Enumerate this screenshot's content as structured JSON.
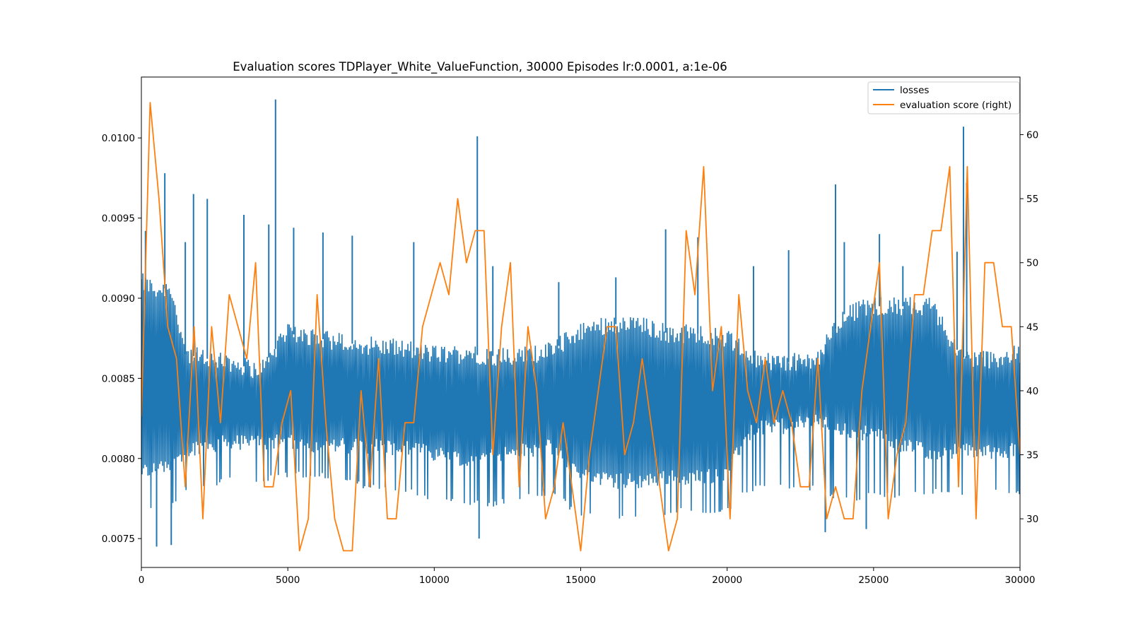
{
  "colors": {
    "losses": "#1f77b4",
    "score": "#ff7f0e",
    "axes": "#000000",
    "background": "#ffffff"
  },
  "chart_data": {
    "type": "line",
    "title": "Evaluation scores TDPlayer_White_ValueFunction, 30000 Episodes  lr:0.0001, a:1e-06",
    "xlabel": "",
    "ylabel": "",
    "xlim": [
      0,
      30000
    ],
    "ylim_left": [
      0.00732,
      0.01038
    ],
    "ylim_right": [
      26.2,
      64.5
    ],
    "x_ticks": [
      0,
      5000,
      10000,
      15000,
      20000,
      25000,
      30000
    ],
    "x_tick_labels": [
      "0",
      "5000",
      "10000",
      "15000",
      "20000",
      "25000",
      "30000"
    ],
    "y_left_ticks": [
      0.0075,
      0.008,
      0.0085,
      0.009,
      0.0095,
      0.01
    ],
    "y_left_tick_labels": [
      "0.0075",
      "0.0080",
      "0.0085",
      "0.0090",
      "0.0095",
      "0.0100"
    ],
    "y_right_ticks": [
      30,
      35,
      40,
      45,
      50,
      55,
      60
    ],
    "y_right_tick_labels": [
      "30",
      "35",
      "40",
      "45",
      "50",
      "55",
      "60"
    ],
    "legend": {
      "position": "top-right",
      "entries": [
        "losses",
        "evaluation score (right)"
      ]
    },
    "series": [
      {
        "name": "losses",
        "axis": "left",
        "style": "dense-oscillating band",
        "step": 50,
        "envelope": {
          "x": [
            0,
            500,
            1000,
            1500,
            2000,
            3000,
            4000,
            5000,
            6000,
            7000,
            8000,
            9000,
            10000,
            11000,
            12000,
            13000,
            14000,
            15000,
            16000,
            17000,
            18000,
            19000,
            20000,
            20500,
            21000,
            22000,
            23000,
            24000,
            25000,
            26000,
            27000,
            28000,
            29000,
            30000
          ],
          "upper": [
            0.0091,
            0.00905,
            0.00907,
            0.00865,
            0.00863,
            0.0086,
            0.00855,
            0.00878,
            0.00875,
            0.00872,
            0.0087,
            0.00868,
            0.00865,
            0.00865,
            0.00864,
            0.00864,
            0.00867,
            0.0088,
            0.00884,
            0.00883,
            0.00878,
            0.00878,
            0.00875,
            0.00868,
            0.00862,
            0.0086,
            0.0086,
            0.0089,
            0.00895,
            0.00895,
            0.00895,
            0.00863,
            0.00862,
            0.00865
          ],
          "lower": [
            0.00792,
            0.00793,
            0.00798,
            0.00805,
            0.00808,
            0.0081,
            0.0081,
            0.0081,
            0.00808,
            0.00808,
            0.00808,
            0.00806,
            0.00803,
            0.008,
            0.00802,
            0.00805,
            0.00807,
            0.0079,
            0.00786,
            0.00786,
            0.00788,
            0.00789,
            0.0079,
            0.0081,
            0.0082,
            0.0082,
            0.00823,
            0.00818,
            0.00815,
            0.00808,
            0.00804,
            0.00805,
            0.00804,
            0.00805
          ],
          "floor": [
            0.00766,
            0.00768,
            0.00768,
            0.00778,
            0.0078,
            0.00785,
            0.00785,
            0.00788,
            0.00788,
            0.00783,
            0.0078,
            0.00778,
            0.00772,
            0.0077,
            0.0077,
            0.00775,
            0.00777,
            0.00762,
            0.00762,
            0.00762,
            0.00765,
            0.00766,
            0.00766,
            0.00776,
            0.0078,
            0.0078,
            0.0078,
            0.00772,
            0.00775,
            0.00775,
            0.00777,
            0.00777,
            0.00777,
            0.00777
          ]
        },
        "spikes": [
          [
            140,
            0.00942
          ],
          [
            520,
            0.00745
          ],
          [
            800,
            0.00978
          ],
          [
            1020,
            0.00746
          ],
          [
            1500,
            0.00935
          ],
          [
            1780,
            0.00965
          ],
          [
            2250,
            0.00962
          ],
          [
            3500,
            0.00952
          ],
          [
            4350,
            0.00946
          ],
          [
            4580,
            0.01024
          ],
          [
            5200,
            0.00944
          ],
          [
            6200,
            0.00941
          ],
          [
            7200,
            0.00939
          ],
          [
            9300,
            0.00935
          ],
          [
            11470,
            0.01001
          ],
          [
            11530,
            0.0075
          ],
          [
            17900,
            0.00943
          ],
          [
            19000,
            0.00938
          ],
          [
            23700,
            0.00971
          ],
          [
            23350,
            0.00754
          ],
          [
            24750,
            0.00756
          ],
          [
            25200,
            0.0094
          ],
          [
            28070,
            0.01007
          ],
          [
            28180,
            0.00972
          ],
          [
            27850,
            0.00929
          ],
          [
            12000,
            0.0092
          ],
          [
            14250,
            0.0091
          ],
          [
            16200,
            0.00913
          ],
          [
            20900,
            0.0092
          ],
          [
            22100,
            0.0093
          ],
          [
            24000,
            0.00935
          ],
          [
            26000,
            0.0092
          ]
        ]
      },
      {
        "name": "evaluation score (right)",
        "axis": "right",
        "x": [
          0,
          300,
          600,
          900,
          1200,
          1500,
          1800,
          2100,
          2400,
          2700,
          3000,
          3300,
          3600,
          3900,
          4200,
          4500,
          4800,
          5100,
          5400,
          5700,
          6000,
          6300,
          6600,
          6900,
          7200,
          7500,
          7800,
          8100,
          8400,
          8700,
          9000,
          9300,
          9600,
          9900,
          10200,
          10500,
          10800,
          11100,
          11400,
          11700,
          12000,
          12300,
          12600,
          12900,
          13200,
          13500,
          13800,
          14100,
          14400,
          14700,
          15000,
          15300,
          15600,
          15900,
          16200,
          16500,
          16800,
          17100,
          17400,
          17700,
          18000,
          18300,
          18600,
          18900,
          19200,
          19500,
          19800,
          20100,
          20400,
          20700,
          21000,
          21300,
          21600,
          21900,
          22200,
          22500,
          22800,
          23100,
          23400,
          23700,
          24000,
          24300,
          24600,
          24900,
          25200,
          25500,
          25800,
          26100,
          26400,
          26700,
          27000,
          27300,
          27600,
          27900,
          28200,
          28500,
          28800,
          29100,
          29400,
          29700,
          30000
        ],
        "y": [
          38,
          62.5,
          55,
          45,
          42.5,
          32.5,
          45,
          30,
          45,
          37.5,
          47.5,
          45,
          42.5,
          50,
          32.5,
          32.5,
          37.5,
          40,
          27.5,
          30,
          47.5,
          37.5,
          30,
          27.5,
          27.5,
          40,
          32.5,
          42.5,
          30,
          30,
          37.5,
          37.5,
          45,
          47.5,
          50,
          47.5,
          55,
          50,
          52.5,
          52.5,
          35,
          45,
          50,
          32.5,
          45,
          40,
          30,
          32.5,
          37.5,
          32.5,
          27.5,
          35,
          40,
          45,
          45,
          35,
          37.5,
          42.5,
          37.5,
          32.5,
          27.5,
          30,
          52.5,
          47.5,
          57.5,
          40,
          45,
          30,
          47.5,
          40,
          37.5,
          42.5,
          37.5,
          40,
          37.5,
          32.5,
          32.5,
          42.5,
          30,
          32.5,
          30,
          30,
          40,
          45,
          50,
          30,
          35,
          37.5,
          47.5,
          47.5,
          52.5,
          52.5,
          57.5,
          32.5,
          57.5,
          30,
          50,
          50,
          45,
          45,
          35
        ]
      }
    ]
  }
}
